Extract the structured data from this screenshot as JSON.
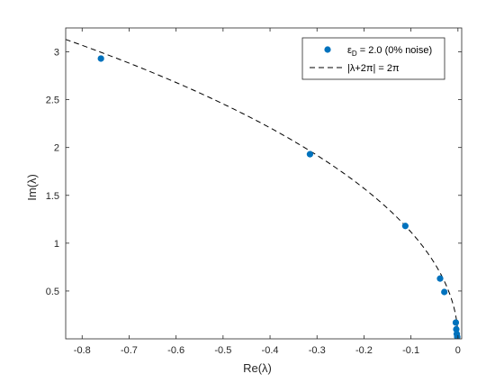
{
  "chart_data": {
    "type": "scatter",
    "title": "",
    "xlabel": "Re(λ)",
    "ylabel": "Im(λ)",
    "xlim": [
      -0.835,
      0.008
    ],
    "ylim": [
      0.0,
      3.25
    ],
    "xticks": [
      -0.8,
      -0.7,
      -0.6,
      -0.5,
      -0.4,
      -0.3,
      -0.2,
      -0.1,
      0
    ],
    "xtick_labels": [
      "-0.8",
      "-0.7",
      "-0.6",
      "-0.5",
      "-0.4",
      "-0.3",
      "-0.2",
      "-0.1",
      "0"
    ],
    "yticks": [
      0.5,
      1,
      1.5,
      2,
      2.5,
      3
    ],
    "ytick_labels": [
      "0.5",
      "1",
      "1.5",
      "2",
      "2.5",
      "3"
    ],
    "grid": false,
    "legend_position": "top-right",
    "series": [
      {
        "name": "ε_D = 2.0 (0% noise)",
        "kind": "markers",
        "color": "#0072bd",
        "x": [
          -0.76,
          -0.315,
          -0.112,
          -0.038,
          -0.029,
          -0.0045,
          -0.0035,
          -0.0025,
          -0.0015
        ],
        "y": [
          2.93,
          1.93,
          1.18,
          0.63,
          0.49,
          0.17,
          0.1,
          0.05,
          0.02
        ]
      },
      {
        "name": "|λ+2π| = 2π",
        "kind": "dashed-curve",
        "color": "#000000",
        "equation": "|λ+2π| = 2π"
      }
    ],
    "legend": [
      {
        "sub_prefix": "ε",
        "sub": "D",
        "text": " = 2.0 (0% noise)"
      },
      {
        "text": "|λ+2π| = 2π"
      }
    ]
  }
}
